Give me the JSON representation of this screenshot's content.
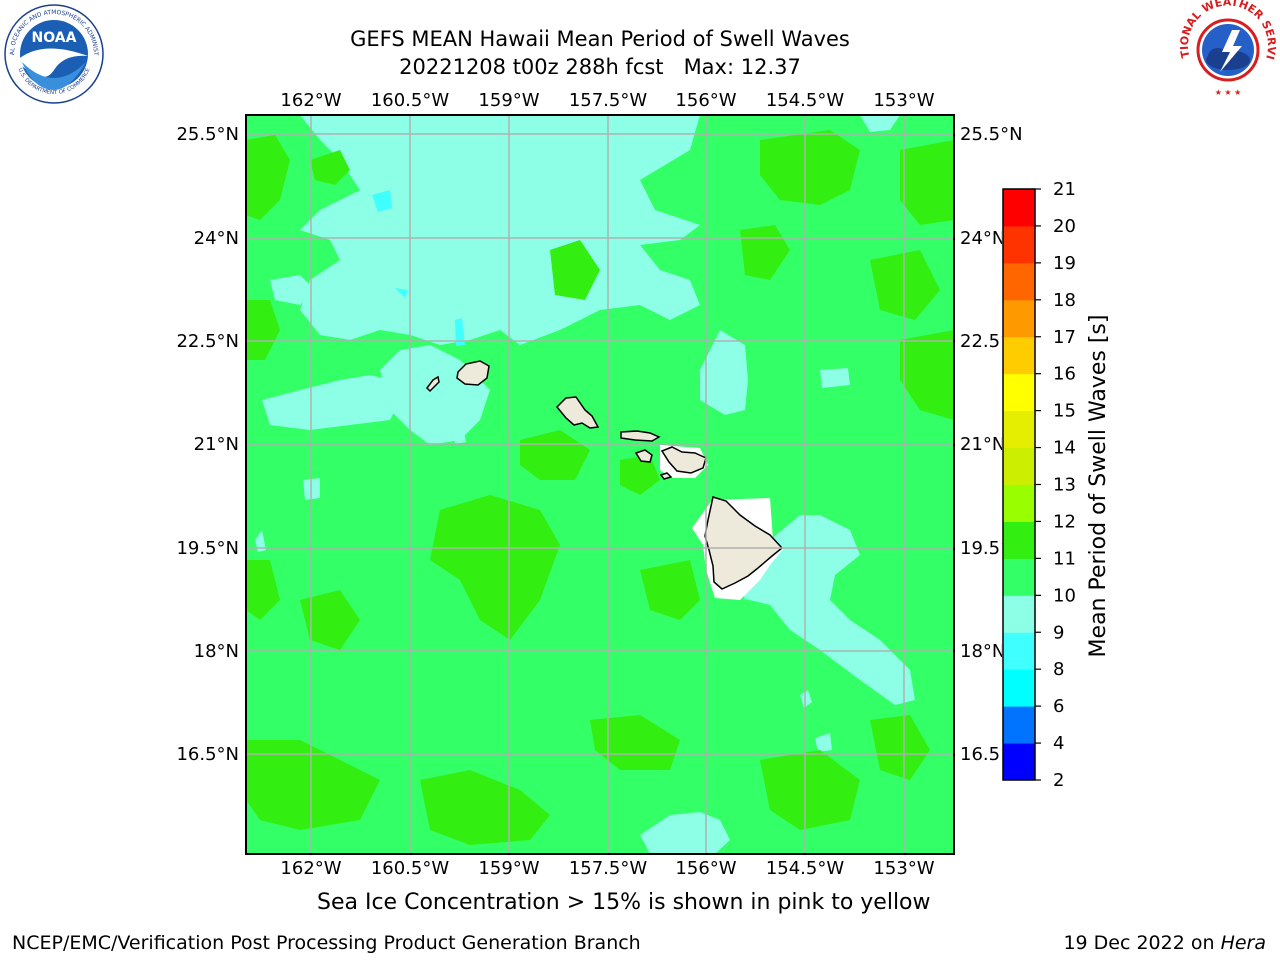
{
  "title": {
    "line1": "GEFS MEAN Hawaii Mean Period of Swell Waves",
    "line2": "20221208 t00z 288h fcst   Max: 12.37"
  },
  "map": {
    "lon_labels": [
      "162°W",
      "160.5°W",
      "159°W",
      "157.5°W",
      "156°W",
      "154.5°W",
      "153°W"
    ],
    "lon_values": [
      -162,
      -160.5,
      -159,
      -157.5,
      -156,
      -154.5,
      -153
    ],
    "lat_labels": [
      "25.5°N",
      "24°N",
      "22.5°N",
      "21°N",
      "19.5°N",
      "18°N",
      "16.5°N"
    ],
    "lat_values": [
      25.5,
      24,
      22.5,
      21,
      19.5,
      18,
      16.5
    ],
    "lon_range": [
      -163,
      -152.6
    ],
    "lat_range": [
      15,
      25.75
    ],
    "grid": true,
    "dominant_field_value_range": "10-11",
    "colors": {
      "c9_10": "#8cffe6",
      "c10_11": "#33ff66",
      "c11_12": "#33ee11",
      "land": "#eeeadb",
      "grid": "#b0b0b0"
    }
  },
  "colorbar": {
    "label": "Mean Period of Swell Waves [s]",
    "ticks": [
      "2",
      "4",
      "6",
      "8",
      "9",
      "10",
      "11",
      "12",
      "13",
      "14",
      "15",
      "16",
      "17",
      "18",
      "19",
      "20",
      "21"
    ],
    "colors": [
      "#0000ff",
      "#0073ff",
      "#00ffff",
      "#40ffff",
      "#8cffe6",
      "#33ff66",
      "#33ee11",
      "#99ff00",
      "#ccee00",
      "#e5ee00",
      "#ffff00",
      "#ffcc00",
      "#ff9900",
      "#ff6600",
      "#ff3300",
      "#ff0000"
    ]
  },
  "note": "Sea Ice Concentration > 15% is shown in pink to yellow",
  "footer": {
    "left": "NCEP/EMC/Verification Post Processing Product Generation Branch",
    "right_prefix": "19 Dec 2022 on ",
    "right_host": "Hera"
  },
  "logos": {
    "noaa_text": "NOAA",
    "noaa_ring": "NATIONAL OCEANIC AND ATMOSPHERIC ADMINISTRATION",
    "noaa_ring_bottom": "U.S. DEPARTMENT OF COMMERCE",
    "nws_ring": "NATIONAL WEATHER SERVICE"
  }
}
